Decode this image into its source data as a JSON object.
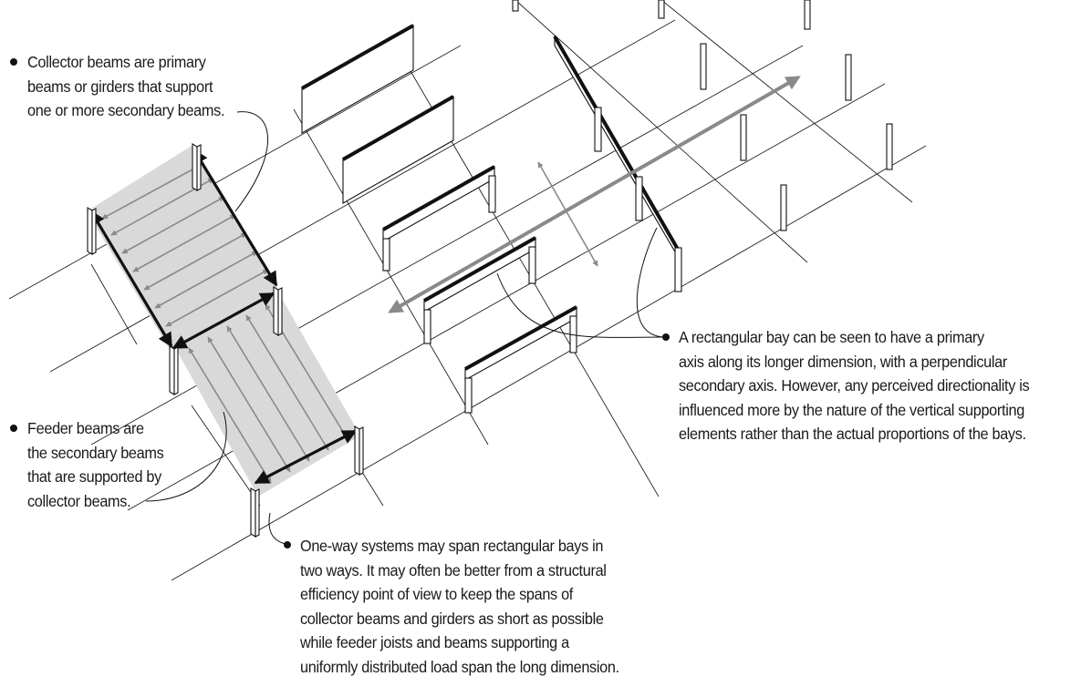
{
  "callouts": {
    "collector": {
      "lines": [
        "Collector beams are primary",
        "beams or girders that support",
        "one or more secondary beams."
      ]
    },
    "feeder": {
      "lines": [
        "Feeder beams are",
        "the secondary beams",
        "that are supported by",
        "collector beams."
      ]
    },
    "one_way": {
      "lines": [
        "One-way systems may span rectangular bays in",
        "two ways. It may often be better from a structural",
        "efficiency point of view to keep the spans of",
        "collector beams and girders as short as possible",
        "while feeder joists and beams supporting a",
        "uniformly distributed load span the long dimension."
      ]
    },
    "rect_bay": {
      "lines": [
        "A rectangular bay can be seen to have a primary",
        "axis along its longer dimension, with a perpendicular",
        "secondary axis. However, any perceived directionality is",
        "influenced more by the nature of the vertical supporting",
        "elements rather than the actual proportions of the bays."
      ]
    }
  },
  "colors": {
    "ink": "#111111",
    "shade": "#d9d9d9",
    "arrow_gray": "#8a8a8a"
  }
}
